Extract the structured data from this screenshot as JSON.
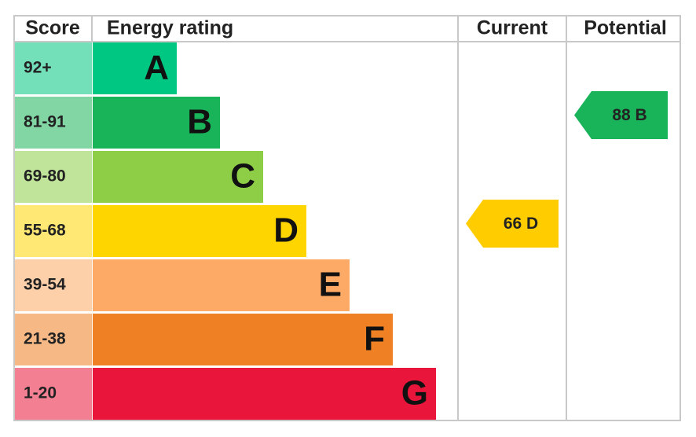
{
  "header": {
    "score": "Score",
    "rating": "Energy rating",
    "current": "Current",
    "potential": "Potential"
  },
  "bands": [
    {
      "score": "92+",
      "letter": "A",
      "color": "#00c781"
    },
    {
      "score": "81-91",
      "letter": "B",
      "color": "#19b459"
    },
    {
      "score": "69-80",
      "letter": "C",
      "color": "#8dce46"
    },
    {
      "score": "55-68",
      "letter": "D",
      "color": "#ffd500"
    },
    {
      "score": "39-54",
      "letter": "E",
      "color": "#fcaa65"
    },
    {
      "score": "21-38",
      "letter": "F",
      "color": "#ef8023"
    },
    {
      "score": "1-20",
      "letter": "G",
      "color": "#e9153b"
    }
  ],
  "current": {
    "label": "66 D",
    "band": "D",
    "color": "#ffcc00"
  },
  "potential": {
    "label": "88 B",
    "band": "B",
    "color": "#19b459"
  }
}
